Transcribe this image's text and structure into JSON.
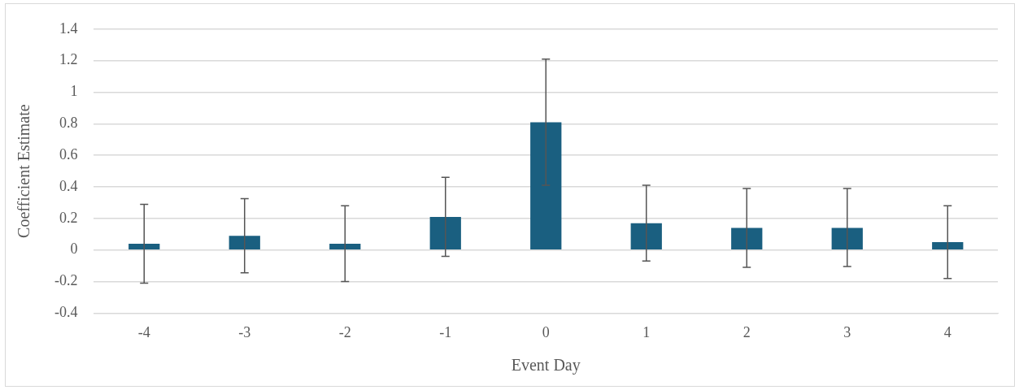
{
  "chart_data": {
    "type": "bar",
    "xlabel": "Event Day",
    "ylabel": "Coefficient Estimate",
    "categories": [
      "-4",
      "-3",
      "-2",
      "-1",
      "0",
      "1",
      "2",
      "3",
      "4"
    ],
    "values": [
      0.04,
      0.09,
      0.04,
      0.21,
      0.81,
      0.17,
      0.14,
      0.14,
      0.05
    ],
    "errors": [
      [
        -0.21,
        0.29
      ],
      [
        -0.145,
        0.325
      ],
      [
        -0.2,
        0.28
      ],
      [
        -0.04,
        0.46
      ],
      [
        0.41,
        1.21
      ],
      [
        -0.07,
        0.41
      ],
      [
        -0.11,
        0.39
      ],
      [
        -0.105,
        0.39
      ],
      [
        -0.18,
        0.28
      ]
    ],
    "color": "#1a5f80",
    "ylim": [
      -0.4,
      1.4
    ],
    "yticks": [
      -0.4,
      -0.2,
      0,
      0.2,
      0.4,
      0.6,
      0.8,
      1,
      1.2,
      1.4
    ],
    "grid": "y",
    "legend": false
  }
}
